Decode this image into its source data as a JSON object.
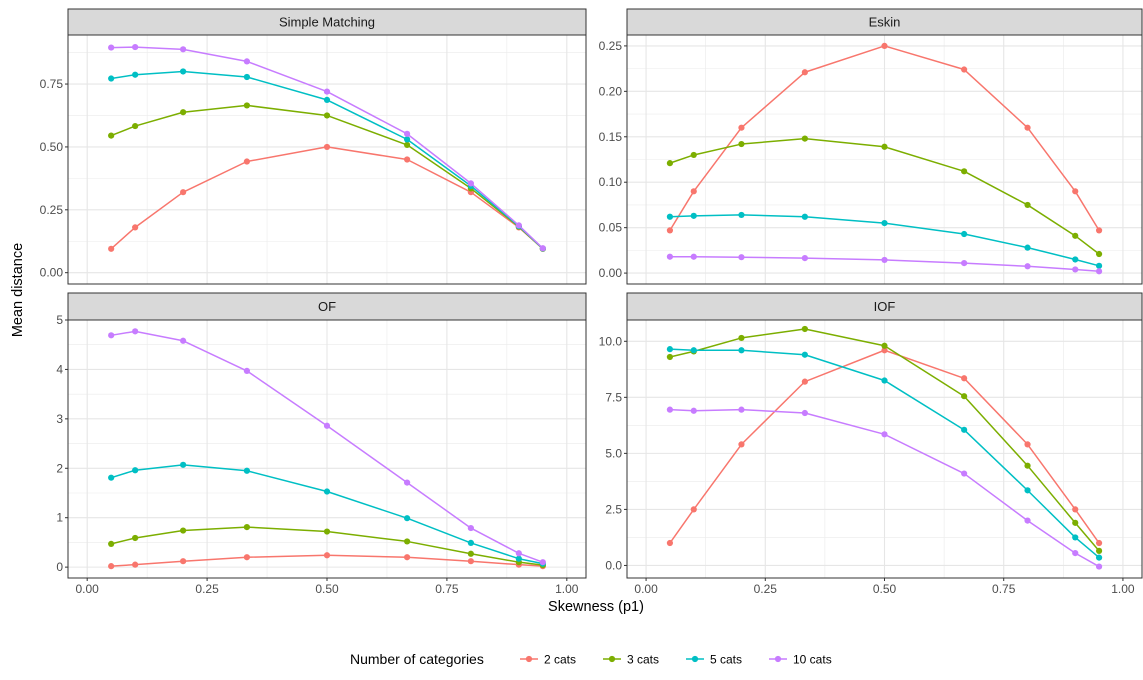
{
  "chart_data": {
    "type": "line",
    "xlabel": "Skewness (p1)",
    "ylabel": "Mean distance",
    "x": [
      0.05,
      0.1,
      0.2,
      0.333,
      0.5,
      0.667,
      0.8,
      0.9,
      0.95
    ],
    "xlim": [
      -0.04,
      1.04
    ],
    "xticks": [
      0.0,
      0.25,
      0.5,
      0.75,
      1.0
    ],
    "xtick_labels": [
      "0.00",
      "0.25",
      "0.50",
      "0.75",
      "1.00"
    ],
    "grid": true,
    "legend": {
      "title": "Number of categories",
      "position": "bottom",
      "entries": [
        {
          "name": "2 cats",
          "color": "#F8766D"
        },
        {
          "name": "3 cats",
          "color": "#7CAE00"
        },
        {
          "name": "5 cats",
          "color": "#00BFC4"
        },
        {
          "name": "10 cats",
          "color": "#C77CFF"
        }
      ]
    },
    "panels": [
      {
        "title": "Simple Matching",
        "ylim": [
          -0.045,
          0.945
        ],
        "yticks": [
          0,
          0.25,
          0.5,
          0.75
        ],
        "ytick_labels": [
          "0.00",
          "0.25",
          "0.50",
          "0.75"
        ],
        "series": [
          {
            "name": "2 cats",
            "values": [
              0.095,
              0.18,
              0.32,
              0.442,
              0.5,
              0.45,
              0.32,
              0.18,
              0.095
            ]
          },
          {
            "name": "3 cats",
            "values": [
              0.545,
              0.583,
              0.638,
              0.665,
              0.625,
              0.508,
              0.335,
              0.183,
              0.095
            ]
          },
          {
            "name": "5 cats",
            "values": [
              0.772,
              0.787,
              0.8,
              0.778,
              0.687,
              0.53,
              0.345,
              0.185,
              0.096
            ]
          },
          {
            "name": "10 cats",
            "values": [
              0.895,
              0.897,
              0.888,
              0.84,
              0.72,
              0.552,
              0.355,
              0.188,
              0.097
            ]
          }
        ]
      },
      {
        "title": "Eskin",
        "ylim": [
          -0.012,
          0.262
        ],
        "yticks": [
          0,
          0.05,
          0.1,
          0.15,
          0.2,
          0.25
        ],
        "ytick_labels": [
          "0.00",
          "0.05",
          "0.10",
          "0.15",
          "0.20",
          "0.25"
        ],
        "series": [
          {
            "name": "2 cats",
            "values": [
              0.047,
              0.09,
              0.16,
              0.221,
              0.25,
              0.224,
              0.16,
              0.09,
              0.047
            ]
          },
          {
            "name": "3 cats",
            "values": [
              0.121,
              0.13,
              0.142,
              0.148,
              0.139,
              0.112,
              0.075,
              0.041,
              0.021
            ]
          },
          {
            "name": "5 cats",
            "values": [
              0.062,
              0.063,
              0.064,
              0.062,
              0.055,
              0.043,
              0.028,
              0.015,
              0.008
            ]
          },
          {
            "name": "10 cats",
            "values": [
              0.018,
              0.018,
              0.0175,
              0.0165,
              0.0145,
              0.011,
              0.0075,
              0.004,
              0.002
            ]
          }
        ]
      },
      {
        "title": "OF",
        "ylim": [
          -0.22,
          5.0
        ],
        "yticks": [
          0,
          1,
          2,
          3,
          4,
          5
        ],
        "ytick_labels": [
          "0",
          "1",
          "2",
          "3",
          "4",
          "5"
        ],
        "series": [
          {
            "name": "2 cats",
            "values": [
              0.02,
              0.05,
              0.12,
              0.2,
              0.24,
              0.2,
              0.12,
              0.05,
              0.02
            ]
          },
          {
            "name": "3 cats",
            "values": [
              0.47,
              0.59,
              0.74,
              0.81,
              0.72,
              0.52,
              0.27,
              0.1,
              0.04
            ]
          },
          {
            "name": "5 cats",
            "values": [
              1.81,
              1.96,
              2.07,
              1.95,
              1.53,
              0.99,
              0.49,
              0.17,
              0.07
            ]
          },
          {
            "name": "10 cats",
            "values": [
              4.69,
              4.77,
              4.58,
              3.97,
              2.86,
              1.71,
              0.79,
              0.28,
              0.1
            ]
          }
        ]
      },
      {
        "title": "IOF",
        "ylim": [
          -0.56,
          10.95
        ],
        "yticks": [
          0,
          2.5,
          5,
          7.5,
          10
        ],
        "ytick_labels": [
          "0.0",
          "2.5",
          "5.0",
          "7.5",
          "10.0"
        ],
        "series": [
          {
            "name": "2 cats",
            "values": [
              1.0,
              2.5,
              5.4,
              8.2,
              9.6,
              8.35,
              5.4,
              2.5,
              1.0
            ]
          },
          {
            "name": "3 cats",
            "values": [
              9.3,
              9.55,
              10.15,
              10.55,
              9.8,
              7.55,
              4.45,
              1.9,
              0.65
            ]
          },
          {
            "name": "5 cats",
            "values": [
              9.65,
              9.6,
              9.6,
              9.4,
              8.25,
              6.05,
              3.35,
              1.25,
              0.35
            ]
          },
          {
            "name": "10 cats",
            "values": [
              6.95,
              6.9,
              6.95,
              6.8,
              5.85,
              4.1,
              2.0,
              0.55,
              -0.05
            ]
          }
        ]
      }
    ]
  }
}
